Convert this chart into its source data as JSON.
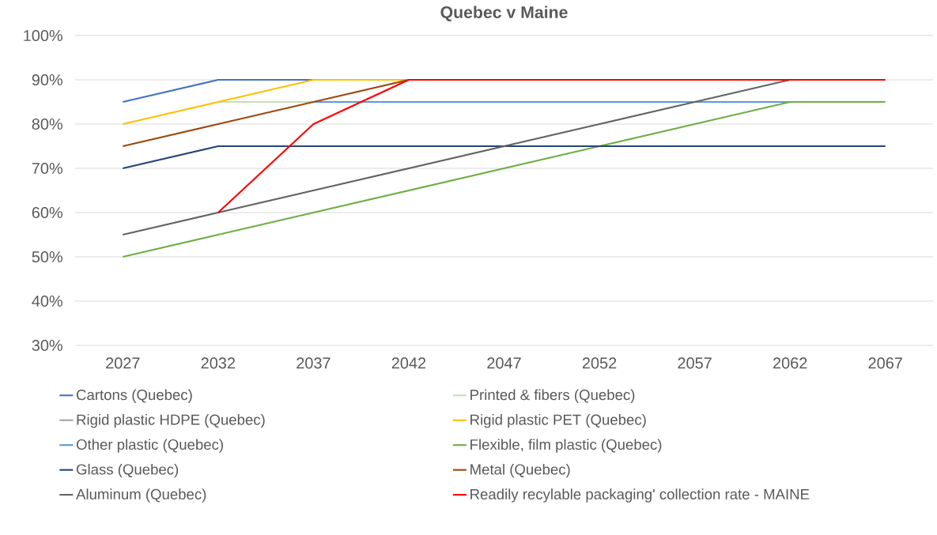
{
  "chart_data": {
    "type": "line",
    "title": "Quebec v Maine",
    "categories": [
      "2027",
      "2032",
      "2037",
      "2042",
      "2047",
      "2052",
      "2057",
      "2062",
      "2067"
    ],
    "series": [
      {
        "name": "Cartons (Quebec)",
        "color": "#4472c4",
        "values": [
          85,
          90,
          90,
          null,
          null,
          null,
          null,
          null,
          null
        ]
      },
      {
        "name": "Printed & fibers (Quebec)",
        "color": "#c5e0b4",
        "values": [
          null,
          85,
          85,
          null,
          null,
          null,
          null,
          null,
          null
        ]
      },
      {
        "name": "Rigid plastic HDPE (Quebec)",
        "color": "#a5a5a5",
        "values": [
          null,
          null,
          null,
          null,
          null,
          null,
          null,
          null,
          null
        ]
      },
      {
        "name": "Rigid plastic PET (Quebec)",
        "color": "#ffc000",
        "values": [
          80,
          85,
          90,
          90,
          null,
          null,
          null,
          null,
          null
        ]
      },
      {
        "name": "Other plastic (Quebec)",
        "color": "#5b9bd5",
        "values": [
          null,
          null,
          85,
          85,
          85,
          85,
          85,
          85,
          null
        ]
      },
      {
        "name": "Flexible, film plastic (Quebec)",
        "color": "#70ad47",
        "values": [
          50,
          55,
          60,
          65,
          70,
          75,
          80,
          85,
          85
        ]
      },
      {
        "name": "Glass (Quebec)",
        "color": "#264478",
        "values": [
          70,
          75,
          75,
          75,
          75,
          75,
          75,
          75,
          75
        ]
      },
      {
        "name": "Metal (Quebec)",
        "color": "#9e480e",
        "values": [
          75,
          80,
          85,
          90,
          null,
          null,
          null,
          null,
          null
        ]
      },
      {
        "name": "Aluminum (Quebec)",
        "color": "#636363",
        "values": [
          55,
          60,
          65,
          70,
          75,
          80,
          85,
          90,
          null
        ]
      },
      {
        "name": "Readily recylable packaging' collection rate - MAINE",
        "color": "#ff0000",
        "values": [
          null,
          60,
          80,
          90,
          90,
          90,
          90,
          90,
          90
        ]
      }
    ],
    "ylim": [
      30,
      100
    ],
    "yticks": [
      {
        "value": 30,
        "label": "30%"
      },
      {
        "value": 40,
        "label": "40%"
      },
      {
        "value": 50,
        "label": "50%"
      },
      {
        "value": 60,
        "label": "60%"
      },
      {
        "value": 70,
        "label": "70%"
      },
      {
        "value": 80,
        "label": "80%"
      },
      {
        "value": 90,
        "label": "90%"
      },
      {
        "value": 100,
        "label": "100%"
      }
    ],
    "grid": "y",
    "legend": "bottom",
    "marker": "none",
    "line_style": "solid"
  }
}
